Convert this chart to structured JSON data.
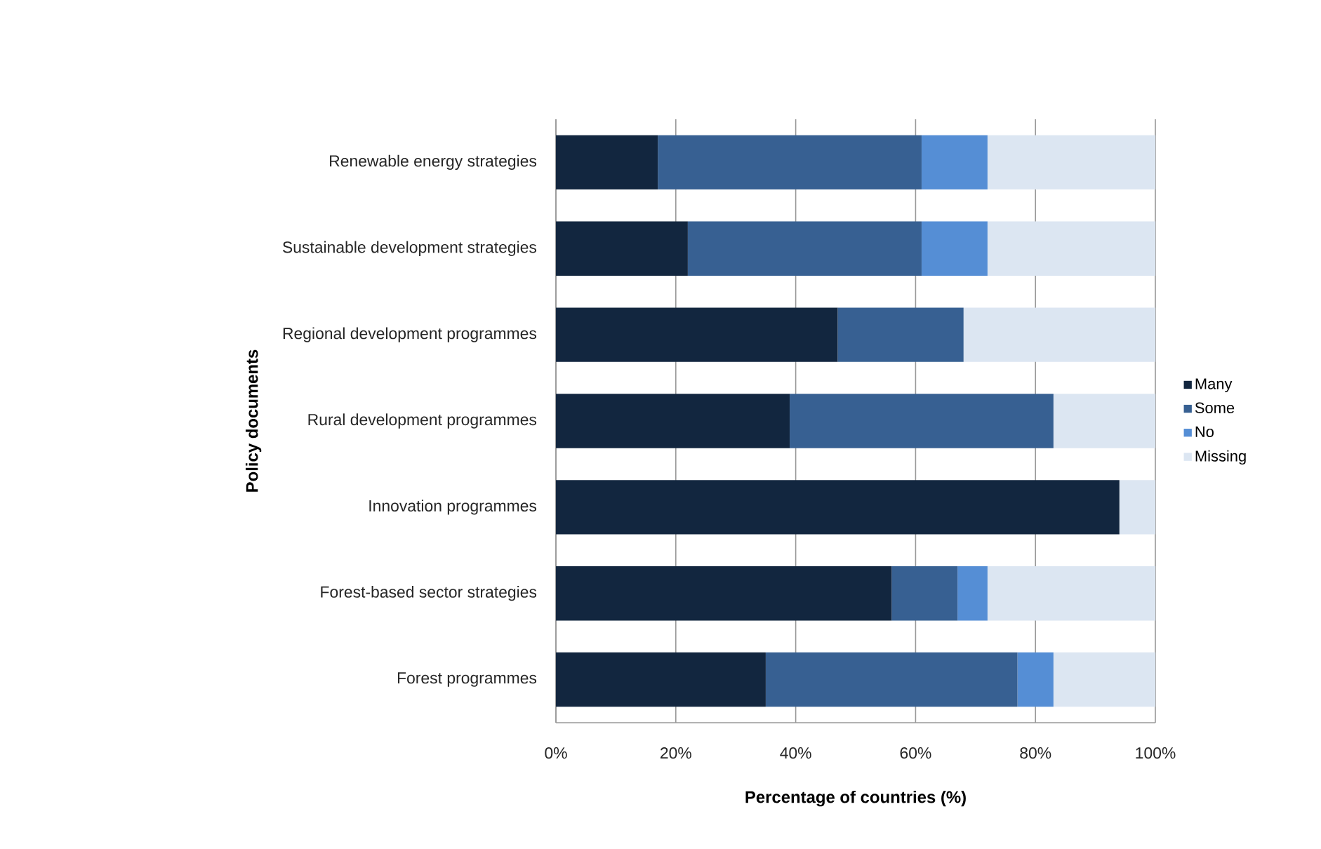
{
  "chart_data": {
    "type": "bar",
    "orientation": "horizontal",
    "stacked": true,
    "xlabel": "Percentage of countries (%)",
    "ylabel": "Policy documents",
    "categories": [
      "Renewable energy strategies",
      "Sustainable development strategies",
      "Regional development programmes",
      "Rural development programmes",
      "Innovation programmes",
      "Forest-based sector strategies",
      "Forest programmes"
    ],
    "series": [
      {
        "name": "Many",
        "color": "#12263f",
        "values": [
          17,
          22,
          47,
          39,
          94,
          56,
          35
        ]
      },
      {
        "name": "Some",
        "color": "#376092",
        "values": [
          44,
          39,
          21,
          44,
          0,
          11,
          42
        ]
      },
      {
        "name": "No",
        "color": "#558ed5",
        "values": [
          11,
          11,
          0,
          0,
          0,
          5,
          6
        ]
      },
      {
        "name": "Missing",
        "color": "#dce6f2",
        "values": [
          28,
          28,
          32,
          17,
          6,
          28,
          17
        ]
      }
    ],
    "xlim": [
      0,
      100
    ],
    "xticks": [
      {
        "value": 0,
        "label": "0%"
      },
      {
        "value": 20,
        "label": "20%"
      },
      {
        "value": 40,
        "label": "40%"
      },
      {
        "value": 60,
        "label": "60%"
      },
      {
        "value": 80,
        "label": "80%"
      },
      {
        "value": 100,
        "label": "100%"
      }
    ],
    "grid": "x",
    "legend": "right"
  }
}
